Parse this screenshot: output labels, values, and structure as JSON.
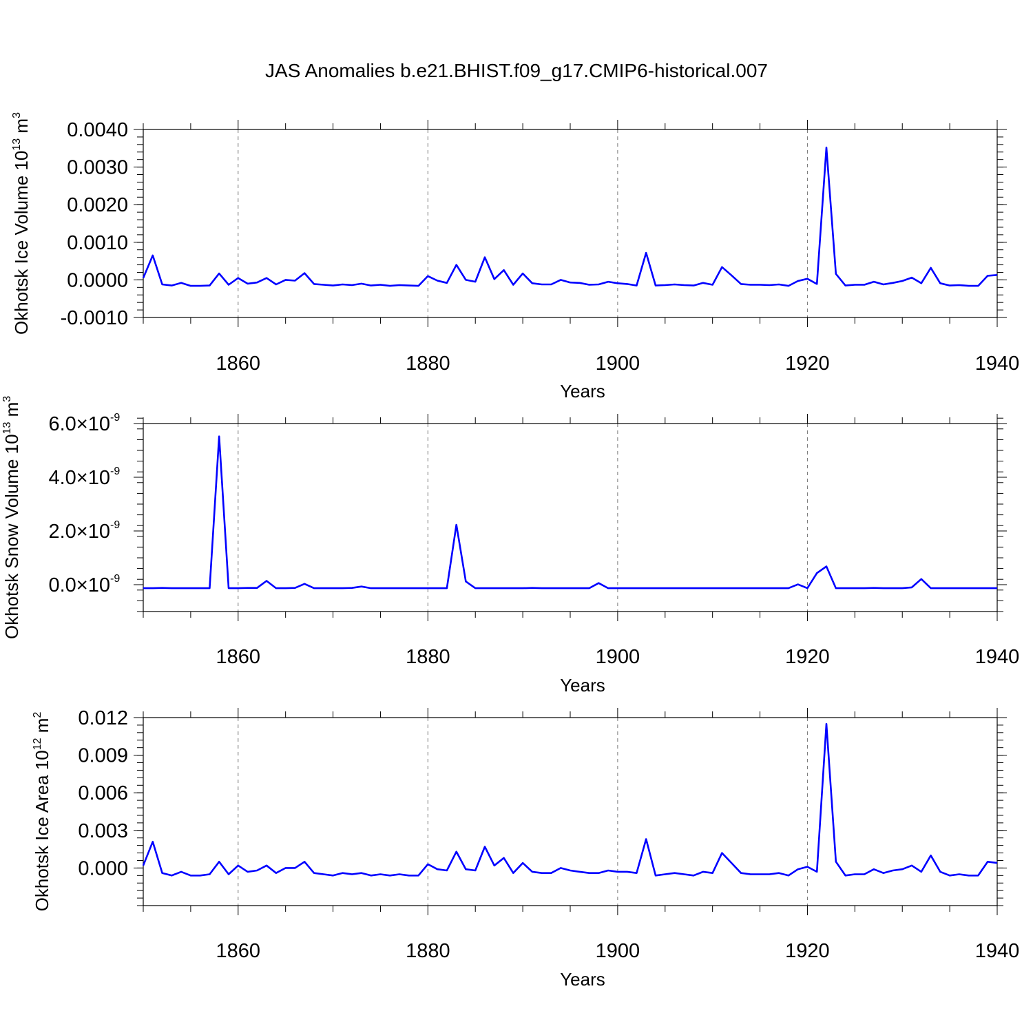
{
  "title": "JAS Anomalies b.e21.BHIST.f09_g17.CMIP6-historical.007",
  "line_color": "#0000ff",
  "chart_data": [
    {
      "type": "line",
      "xlabel": "Years",
      "ylabel": "Okhotsk Ice Volume 10",
      "ylabel_exp": "13",
      "ylabel_unit": " m",
      "ylabel_unit_exp": "3",
      "xlim": [
        1850,
        1940
      ],
      "ylim": [
        -0.001,
        0.004
      ],
      "x_ticks": [
        1860,
        1880,
        1900,
        1920,
        1940
      ],
      "y_ticks": [
        -0.001,
        0.0,
        0.001,
        0.002,
        0.003,
        0.004
      ],
      "y_tick_labels": [
        "-0.0010",
        "0.0000",
        "0.0010",
        "0.0020",
        "0.0030",
        "0.0040"
      ],
      "y_minor_step": 0.0002,
      "grid": "dashed vertical at major x ticks",
      "x": [
        1850,
        1851,
        1852,
        1853,
        1854,
        1855,
        1856,
        1857,
        1858,
        1859,
        1860,
        1861,
        1862,
        1863,
        1864,
        1865,
        1866,
        1867,
        1868,
        1869,
        1870,
        1871,
        1872,
        1873,
        1874,
        1875,
        1876,
        1877,
        1878,
        1879,
        1880,
        1881,
        1882,
        1883,
        1884,
        1885,
        1886,
        1887,
        1888,
        1889,
        1890,
        1891,
        1892,
        1893,
        1894,
        1895,
        1896,
        1897,
        1898,
        1899,
        1900,
        1901,
        1902,
        1903,
        1904,
        1905,
        1906,
        1907,
        1908,
        1909,
        1910,
        1911,
        1912,
        1913,
        1914,
        1915,
        1916,
        1917,
        1918,
        1919,
        1920,
        1921,
        1922,
        1923,
        1924,
        1925,
        1926,
        1927,
        1928,
        1929,
        1930,
        1931,
        1932,
        1933,
        1934,
        1935,
        1936,
        1937,
        1938,
        1939,
        1940
      ],
      "series": [
        {
          "values": [
            5e-05,
            0.00065,
            -0.00012,
            -0.00015,
            -8e-05,
            -0.00016,
            -0.00016,
            -0.00015,
            0.00017,
            -0.00013,
            5e-05,
            -0.0001,
            -7e-05,
            5e-05,
            -0.00012,
            0.0,
            -2e-05,
            0.00018,
            -0.00011,
            -0.00013,
            -0.00015,
            -0.00012,
            -0.00014,
            -0.0001,
            -0.00015,
            -0.00013,
            -0.00016,
            -0.00014,
            -0.00015,
            -0.00016,
            0.0001,
            -2e-05,
            -8e-05,
            0.0004,
            0.0,
            -5e-05,
            0.0006,
            2e-05,
            0.00026,
            -0.00013,
            0.00017,
            -9e-05,
            -0.00012,
            -0.00012,
            0.0,
            -7e-05,
            -8e-05,
            -0.00013,
            -0.00012,
            -5e-05,
            -9e-05,
            -0.00011,
            -0.00015,
            0.00072,
            -0.00015,
            -0.00014,
            -0.00012,
            -0.00014,
            -0.00015,
            -8e-05,
            -0.00013,
            0.00034,
            0.00012,
            -0.00011,
            -0.00013,
            -0.00013,
            -0.00014,
            -0.00012,
            -0.00016,
            -3e-05,
            3e-05,
            -0.00011,
            0.00352,
            0.00016,
            -0.00015,
            -0.00013,
            -0.00013,
            -5e-05,
            -0.00012,
            -8e-05,
            -3e-05,
            6e-05,
            -9e-05,
            0.00032,
            -9e-05,
            -0.00015,
            -0.00014,
            -0.00016,
            -0.00016,
            0.00011,
            0.00013
          ]
        }
      ]
    },
    {
      "type": "line",
      "xlabel": "Years",
      "ylabel": "Okhotsk Snow Volume 10",
      "ylabel_exp": "13",
      "ylabel_unit": " m",
      "ylabel_unit_exp": "3",
      "xlim": [
        1850,
        1940
      ],
      "ylim": [
        -1e-09,
        6e-09
      ],
      "x_ticks": [
        1860,
        1880,
        1900,
        1920,
        1940
      ],
      "y_ticks": [
        0.0,
        2e-09,
        4e-09,
        6e-09
      ],
      "y_tick_mantissas": [
        "0.0",
        "2.0",
        "4.0",
        "6.0"
      ],
      "y_tick_times": "×10",
      "y_tick_exponent": "-9",
      "y_minor_step": 4e-10,
      "grid": "dashed vertical at major x ticks",
      "x": [
        1850,
        1851,
        1852,
        1853,
        1854,
        1855,
        1856,
        1857,
        1858,
        1859,
        1860,
        1861,
        1862,
        1863,
        1864,
        1865,
        1866,
        1867,
        1868,
        1869,
        1870,
        1871,
        1872,
        1873,
        1874,
        1875,
        1876,
        1877,
        1878,
        1879,
        1880,
        1881,
        1882,
        1883,
        1884,
        1885,
        1886,
        1887,
        1888,
        1889,
        1890,
        1891,
        1892,
        1893,
        1894,
        1895,
        1896,
        1897,
        1898,
        1899,
        1900,
        1901,
        1902,
        1903,
        1904,
        1905,
        1906,
        1907,
        1908,
        1909,
        1910,
        1911,
        1912,
        1913,
        1914,
        1915,
        1916,
        1917,
        1918,
        1919,
        1920,
        1921,
        1922,
        1923,
        1924,
        1925,
        1926,
        1927,
        1928,
        1929,
        1930,
        1931,
        1932,
        1933,
        1934,
        1935,
        1936,
        1937,
        1938,
        1939,
        1940
      ],
      "series": [
        {
          "values": [
            -1.3e-10,
            -1.3e-10,
            -1.2e-10,
            -1.3e-10,
            -1.3e-10,
            -1.3e-10,
            -1.3e-10,
            -1.3e-10,
            5.52e-09,
            -1.3e-10,
            -1.3e-10,
            -1.2e-10,
            -1.2e-10,
            1.4e-10,
            -1.3e-10,
            -1.3e-10,
            -1.2e-10,
            3e-11,
            -1.3e-10,
            -1.3e-10,
            -1.3e-10,
            -1.3e-10,
            -1.2e-10,
            -7e-11,
            -1.3e-10,
            -1.3e-10,
            -1.3e-10,
            -1.3e-10,
            -1.3e-10,
            -1.3e-10,
            -1.3e-10,
            -1.3e-10,
            -1.3e-10,
            2.23e-09,
            1.2e-10,
            -1.3e-10,
            -1.3e-10,
            -1.3e-10,
            -1.3e-10,
            -1.3e-10,
            -1.3e-10,
            -1.2e-10,
            -1.3e-10,
            -1.3e-10,
            -1.3e-10,
            -1.3e-10,
            -1.3e-10,
            -1.3e-10,
            6e-11,
            -1.3e-10,
            -1.3e-10,
            -1.3e-10,
            -1.3e-10,
            -1.3e-10,
            -1.3e-10,
            -1.3e-10,
            -1.3e-10,
            -1.3e-10,
            -1.3e-10,
            -1.3e-10,
            -1.3e-10,
            -1.3e-10,
            -1.3e-10,
            -1.3e-10,
            -1.3e-10,
            -1.3e-10,
            -1.3e-10,
            -1.3e-10,
            -1.3e-10,
            1e-11,
            -1.3e-10,
            4.3e-10,
            6.8e-10,
            -1.3e-10,
            -1.3e-10,
            -1.3e-10,
            -1.3e-10,
            -1.2e-10,
            -1.3e-10,
            -1.3e-10,
            -1.3e-10,
            -1e-10,
            2.1e-10,
            -1.3e-10,
            -1.3e-10,
            -1.3e-10,
            -1.3e-10,
            -1.3e-10,
            -1.3e-10,
            -1.3e-10,
            -1.3e-10
          ]
        }
      ]
    },
    {
      "type": "line",
      "xlabel": "Years",
      "ylabel": "Okhotsk Ice Area 10",
      "ylabel_exp": "12",
      "ylabel_unit": " m",
      "ylabel_unit_exp": "2",
      "xlim": [
        1850,
        1940
      ],
      "ylim": [
        -0.003,
        0.012
      ],
      "x_ticks": [
        1860,
        1880,
        1900,
        1920,
        1940
      ],
      "y_ticks": [
        0.0,
        0.003,
        0.006,
        0.009,
        0.012
      ],
      "y_tick_labels": [
        "0.000",
        "0.003",
        "0.006",
        "0.009",
        "0.012"
      ],
      "y_minor_step": 0.0006,
      "grid": "dashed vertical at major x ticks",
      "x": [
        1850,
        1851,
        1852,
        1853,
        1854,
        1855,
        1856,
        1857,
        1858,
        1859,
        1860,
        1861,
        1862,
        1863,
        1864,
        1865,
        1866,
        1867,
        1868,
        1869,
        1870,
        1871,
        1872,
        1873,
        1874,
        1875,
        1876,
        1877,
        1878,
        1879,
        1880,
        1881,
        1882,
        1883,
        1884,
        1885,
        1886,
        1887,
        1888,
        1889,
        1890,
        1891,
        1892,
        1893,
        1894,
        1895,
        1896,
        1897,
        1898,
        1899,
        1900,
        1901,
        1902,
        1903,
        1904,
        1905,
        1906,
        1907,
        1908,
        1909,
        1910,
        1911,
        1912,
        1913,
        1914,
        1915,
        1916,
        1917,
        1918,
        1919,
        1920,
        1921,
        1922,
        1923,
        1924,
        1925,
        1926,
        1927,
        1928,
        1929,
        1930,
        1931,
        1932,
        1933,
        1934,
        1935,
        1936,
        1937,
        1938,
        1939,
        1940
      ],
      "series": [
        {
          "values": [
            0.0002,
            0.0021,
            -0.0004,
            -0.0006,
            -0.0003,
            -0.0006,
            -0.0006,
            -0.0005,
            0.0005,
            -0.0005,
            0.0002,
            -0.0003,
            -0.0002,
            0.0002,
            -0.0004,
            0.0,
            0.0,
            0.0005,
            -0.0004,
            -0.0005,
            -0.0006,
            -0.0004,
            -0.0005,
            -0.0004,
            -0.0006,
            -0.0005,
            -0.0006,
            -0.0005,
            -0.0006,
            -0.0006,
            0.0003,
            -0.0001,
            -0.0002,
            0.0013,
            -0.0001,
            -0.0002,
            0.0017,
            0.0002,
            0.0008,
            -0.0004,
            0.0004,
            -0.0003,
            -0.0004,
            -0.0004,
            0.0,
            -0.0002,
            -0.0003,
            -0.0004,
            -0.0004,
            -0.0002,
            -0.0003,
            -0.0003,
            -0.0004,
            0.0023,
            -0.0006,
            -0.0005,
            -0.0004,
            -0.0005,
            -0.0006,
            -0.0003,
            -0.0004,
            0.0012,
            0.0004,
            -0.0004,
            -0.0005,
            -0.0005,
            -0.0005,
            -0.0004,
            -0.0006,
            -0.0001,
            0.0001,
            -0.0003,
            0.0115,
            0.0005,
            -0.0006,
            -0.0005,
            -0.0005,
            -0.0001,
            -0.0004,
            -0.0002,
            -0.0001,
            0.0002,
            -0.0003,
            0.001,
            -0.0003,
            -0.0006,
            -0.0005,
            -0.0006,
            -0.0006,
            0.0005,
            0.0004
          ]
        }
      ]
    }
  ]
}
